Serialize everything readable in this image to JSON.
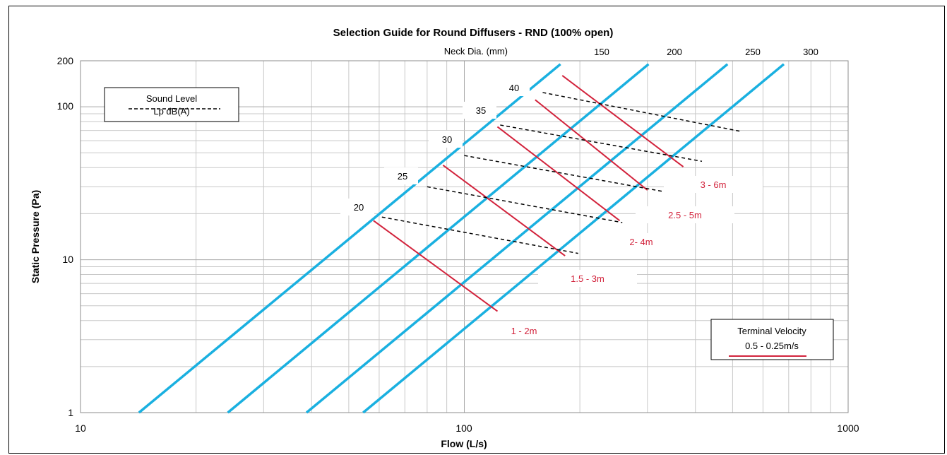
{
  "chart_data": {
    "type": "line",
    "title": "Selection Guide for Round Diffusers - RND (100% open)",
    "xlabel": "Flow (L/s)",
    "ylabel": "Static Pressure (Pa)",
    "x_scale": "log",
    "y_scale": "log",
    "xlim": [
      10,
      1000
    ],
    "ylim": [
      1,
      200
    ],
    "x_ticks": [
      "10",
      "100",
      "1000"
    ],
    "y_ticks": [
      "1",
      "10",
      "100",
      "200"
    ],
    "grid": true,
    "neck_header": "Neck Dia. (mm)",
    "neck_series": [
      {
        "name": "150",
        "x": [
          14.2,
          178
        ],
        "y": [
          1,
          190
        ]
      },
      {
        "name": "200",
        "x": [
          24.2,
          302
        ],
        "y": [
          1,
          190
        ]
      },
      {
        "name": "250",
        "x": [
          38.8,
          485
        ],
        "y": [
          1,
          190
        ]
      },
      {
        "name": "300",
        "x": [
          54.5,
          680
        ],
        "y": [
          1,
          190
        ]
      }
    ],
    "throw_series": [
      {
        "name": "1 - 2m",
        "x": [
          58,
          122
        ],
        "y": [
          18.0,
          4.6
        ]
      },
      {
        "name": "1.5 - 3m",
        "x": [
          88,
          183
        ],
        "y": [
          41.5,
          10.6
        ]
      },
      {
        "name": "2- 4m",
        "x": [
          122,
          254
        ],
        "y": [
          74,
          18.0
        ]
      },
      {
        "name": "2.5 - 5m",
        "x": [
          153,
          300
        ],
        "y": [
          111,
          28.5
        ]
      },
      {
        "name": "3 - 6m",
        "x": [
          180,
          372
        ],
        "y": [
          160,
          40.5
        ]
      }
    ],
    "sound_series": [
      {
        "name": "20",
        "x": [
          61,
          198
        ],
        "y": [
          19.0,
          11.0
        ]
      },
      {
        "name": "25",
        "x": [
          80,
          258
        ],
        "y": [
          30.0,
          17.5
        ]
      },
      {
        "name": "30",
        "x": [
          100,
          328
        ],
        "y": [
          48,
          28
        ]
      },
      {
        "name": "35",
        "x": [
          124,
          416
        ],
        "y": [
          76,
          44
        ]
      },
      {
        "name": "40",
        "x": [
          160,
          526
        ],
        "y": [
          124,
          69
        ]
      }
    ],
    "legend_sound": {
      "title": "Sound  Level",
      "sub": "Lp dB(A)"
    },
    "legend_velocity": {
      "title": "Terminal Velocity",
      "sub": "0.5 - 0.25m/s"
    },
    "colors": {
      "neck": "#1ab0e0",
      "throw": "#d2233c",
      "sound": "#000000",
      "grid": "#c8c8c8"
    }
  }
}
